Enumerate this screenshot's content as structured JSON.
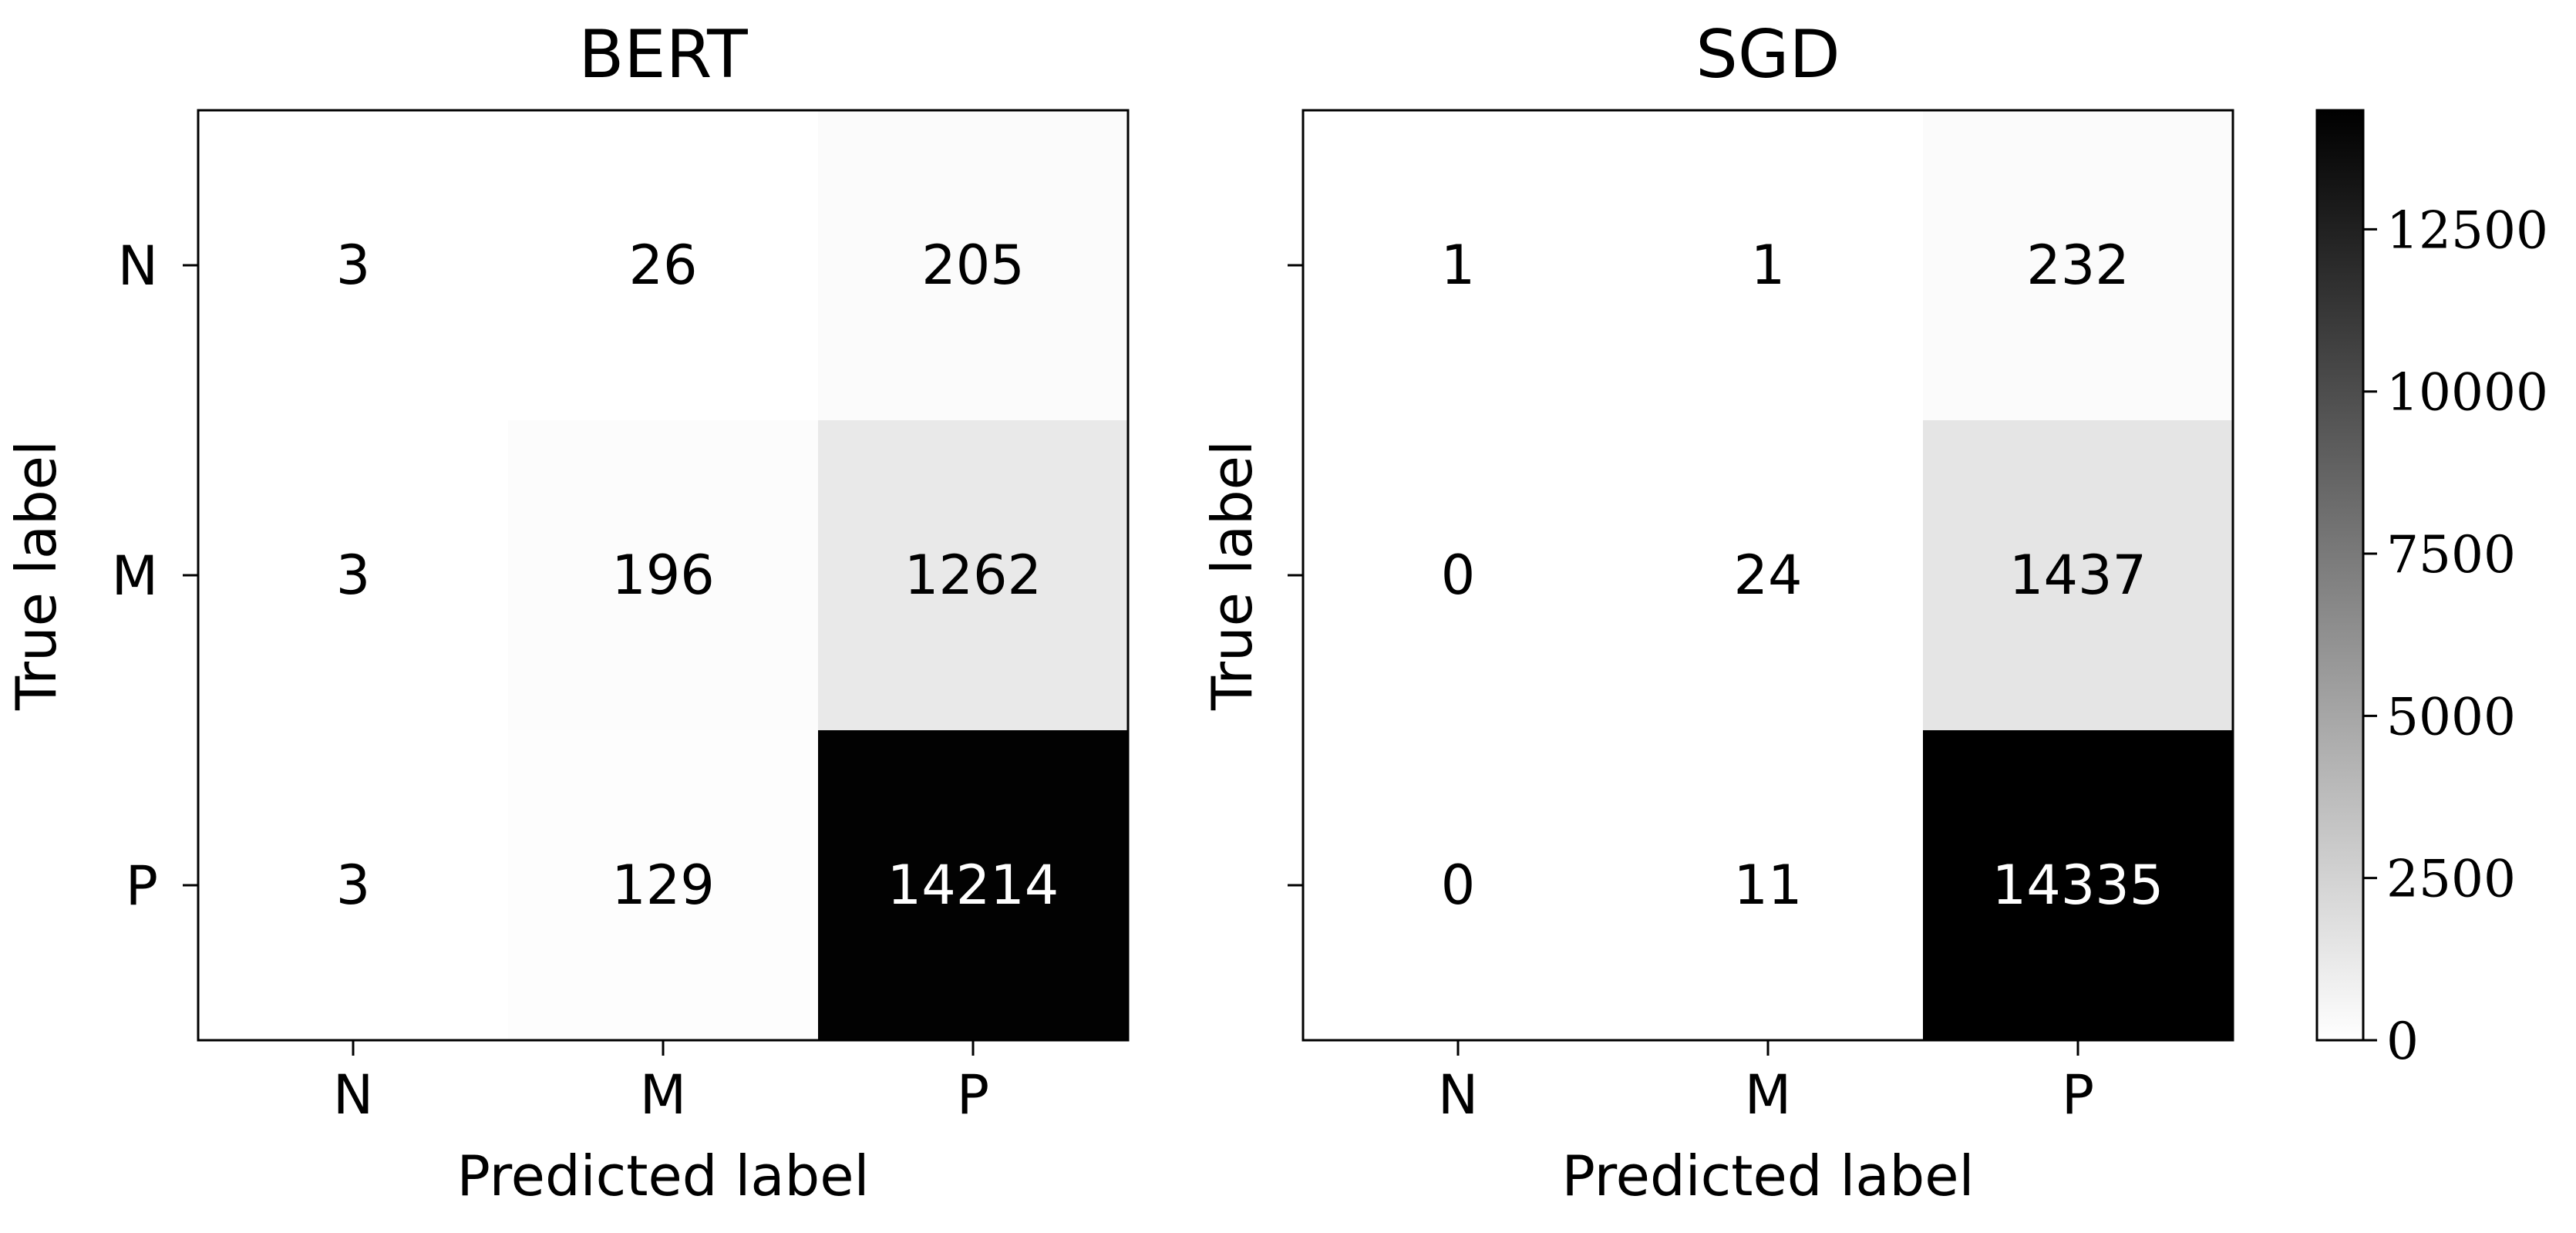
{
  "colorbar": {
    "min": 0,
    "max": 14335,
    "ticks": [
      0,
      2500,
      5000,
      7500,
      10000,
      12500
    ]
  },
  "chart_data": [
    {
      "type": "heatmap",
      "title": "BERT",
      "xlabel": "Predicted label",
      "ylabel": "True label",
      "x_categories": [
        "N",
        "M",
        "P"
      ],
      "y_categories": [
        "N",
        "M",
        "P"
      ],
      "values": [
        [
          3,
          26,
          205
        ],
        [
          3,
          196,
          1262
        ],
        [
          3,
          129,
          14214
        ]
      ]
    },
    {
      "type": "heatmap",
      "title": "SGD",
      "xlabel": "Predicted label",
      "ylabel": "True label",
      "x_categories": [
        "N",
        "M",
        "P"
      ],
      "y_categories": [
        "N",
        "M",
        "P"
      ],
      "values": [
        [
          1,
          1,
          232
        ],
        [
          0,
          24,
          1437
        ],
        [
          0,
          11,
          14335
        ]
      ]
    }
  ]
}
